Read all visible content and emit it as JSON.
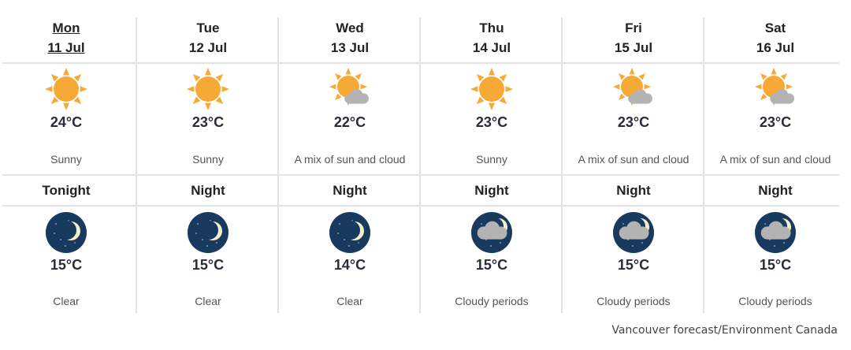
{
  "days": [
    {
      "day": "Mon",
      "date": "11 Jul",
      "today": true,
      "icon": "sun-icon",
      "temp": "24°C",
      "condition": "Sunny",
      "night_label": "Tonight",
      "night_icon": "moon-clear-icon",
      "night_temp": "15°C",
      "night_condition": "Clear"
    },
    {
      "day": "Tue",
      "date": "12 Jul",
      "icon": "sun-icon",
      "temp": "23°C",
      "condition": "Sunny",
      "night_label": "Night",
      "night_icon": "moon-clear-icon",
      "night_temp": "15°C",
      "night_condition": "Clear"
    },
    {
      "day": "Wed",
      "date": "13 Jul",
      "icon": "sun-cloud-icon",
      "temp": "22°C",
      "condition": "A mix of sun and cloud",
      "night_label": "Night",
      "night_icon": "moon-clear-icon",
      "night_temp": "14°C",
      "night_condition": "Clear"
    },
    {
      "day": "Thu",
      "date": "14 Jul",
      "icon": "sun-icon",
      "temp": "23°C",
      "condition": "Sunny",
      "night_label": "Night",
      "night_icon": "moon-cloud-icon",
      "night_temp": "15°C",
      "night_condition": "Cloudy periods"
    },
    {
      "day": "Fri",
      "date": "15 Jul",
      "icon": "sun-cloud-icon",
      "temp": "23°C",
      "condition": "A mix of sun and cloud",
      "night_label": "Night",
      "night_icon": "moon-cloud-icon",
      "night_temp": "15°C",
      "night_condition": "Cloudy periods"
    },
    {
      "day": "Sat",
      "date": "16 Jul",
      "icon": "sun-cloud-icon",
      "temp": "23°C",
      "condition": "A mix of sun and cloud",
      "night_label": "Night",
      "night_icon": "moon-cloud-icon",
      "night_temp": "15°C",
      "night_condition": "Cloudy periods"
    }
  ],
  "credit": "Vancouver forecast/Environment Canada",
  "colors": {
    "sun": "#f7a935",
    "cloud": "#b3b3b3",
    "night": "#173a5e",
    "moon": "#f3efc9",
    "grid": "#e3e3e3"
  }
}
